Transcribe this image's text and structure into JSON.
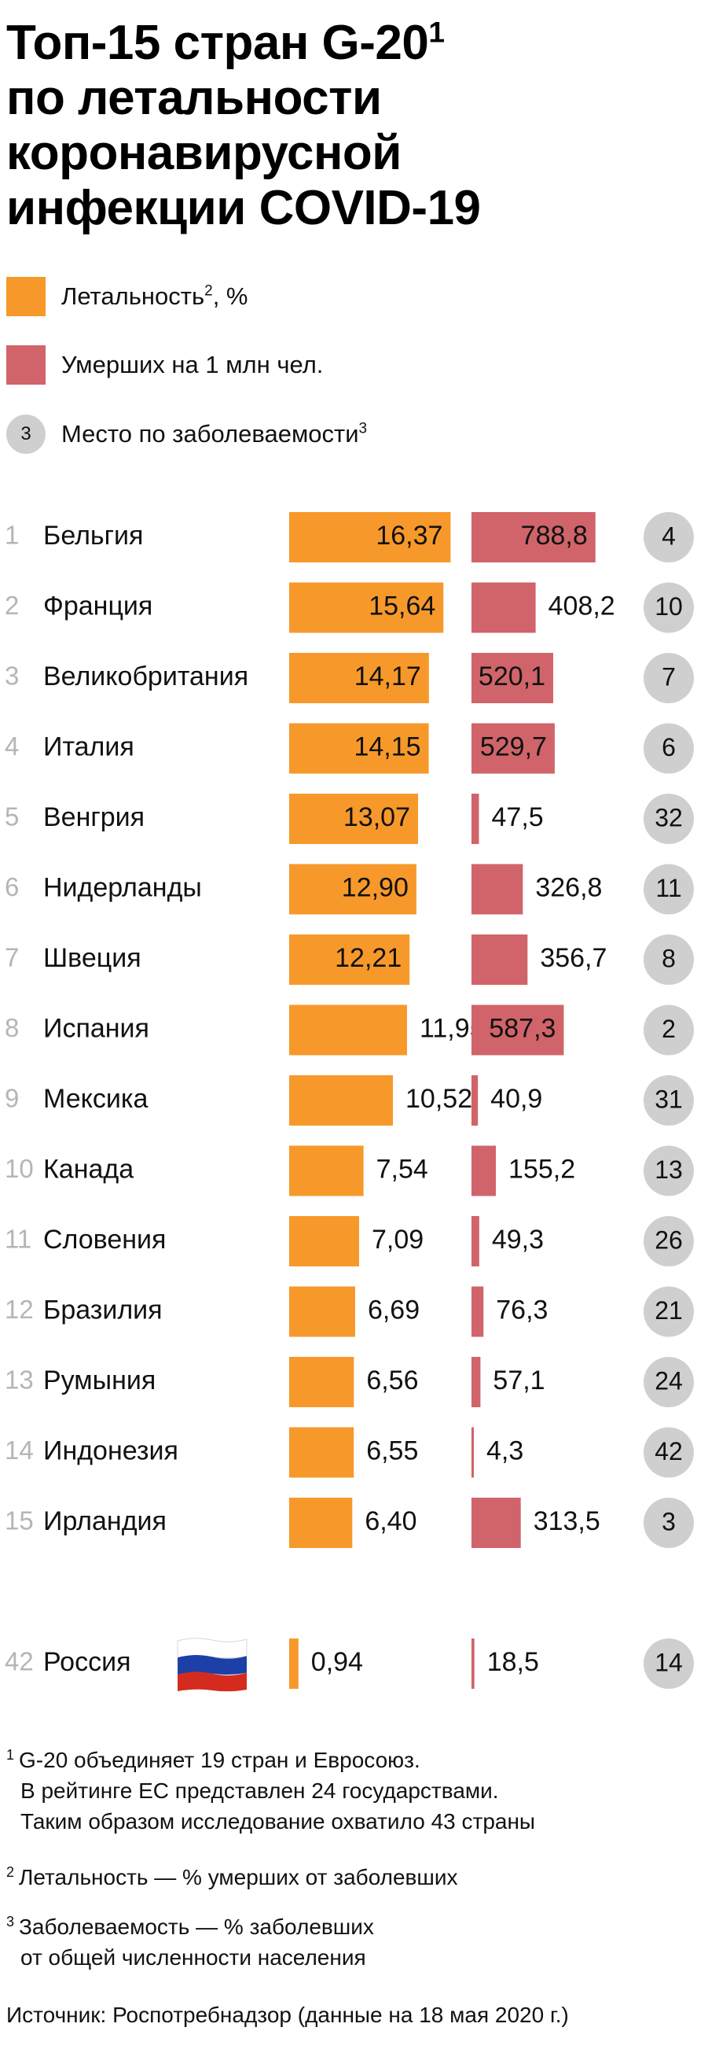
{
  "title_lines": [
    "Топ-15 стран G-20",
    "по летальности",
    "коронавирусной",
    "инфекции COVID-19"
  ],
  "title_sup": "1",
  "legend": [
    {
      "label": "Летальность",
      "sup": "2",
      "suffix": ", %",
      "color": "#f7992a"
    },
    {
      "label": "Умерших на 1 млн чел.",
      "sup": "",
      "suffix": "",
      "color": "#d0646a"
    },
    {
      "label": "Место по заболеваемости",
      "sup": "3",
      "suffix": "",
      "marker": "3",
      "color": "#cfcfcf"
    }
  ],
  "chart_data": {
    "type": "bar",
    "colors": {
      "lethality": "#f7992a",
      "deaths": "#d0646a",
      "place": "#cfcfcf",
      "rank": "#b5b5b5"
    },
    "rows": [
      {
        "rank": "1",
        "country": "Бельгия",
        "lethality": "16,37",
        "lethality_value": 16.37,
        "deaths": "788,8",
        "deaths_value": 788.8,
        "place": "4"
      },
      {
        "rank": "2",
        "country": "Франция",
        "lethality": "15,64",
        "lethality_value": 15.64,
        "deaths": "408,2",
        "deaths_value": 408.2,
        "place": "10"
      },
      {
        "rank": "3",
        "country": "Великобритания",
        "lethality": "14,17",
        "lethality_value": 14.17,
        "deaths": "520,1",
        "deaths_value": 520.1,
        "place": "7"
      },
      {
        "rank": "4",
        "country": "Италия",
        "lethality": "14,15",
        "lethality_value": 14.15,
        "deaths": "529,7",
        "deaths_value": 529.7,
        "place": "6"
      },
      {
        "rank": "5",
        "country": "Венгрия",
        "lethality": "13,07",
        "lethality_value": 13.07,
        "deaths": "47,5",
        "deaths_value": 47.5,
        "place": "32"
      },
      {
        "rank": "6",
        "country": "Нидерланды",
        "lethality": "12,90",
        "lethality_value": 12.9,
        "deaths": "326,8",
        "deaths_value": 326.8,
        "place": "11"
      },
      {
        "rank": "7",
        "country": "Швеция",
        "lethality": "12,21",
        "lethality_value": 12.21,
        "deaths": "356,7",
        "deaths_value": 356.7,
        "place": "8"
      },
      {
        "rank": "8",
        "country": "Испания",
        "lethality": "11,95",
        "lethality_value": 11.95,
        "deaths": "587,3",
        "deaths_value": 587.3,
        "place": "2"
      },
      {
        "rank": "9",
        "country": "Мексика",
        "lethality": "10,52",
        "lethality_value": 10.52,
        "deaths": "40,9",
        "deaths_value": 40.9,
        "place": "31"
      },
      {
        "rank": "10",
        "country": "Канада",
        "lethality": "7,54",
        "lethality_value": 7.54,
        "deaths": "155,2",
        "deaths_value": 155.2,
        "place": "13"
      },
      {
        "rank": "11",
        "country": "Словения",
        "lethality": "7,09",
        "lethality_value": 7.09,
        "deaths": "49,3",
        "deaths_value": 49.3,
        "place": "26"
      },
      {
        "rank": "12",
        "country": "Бразилия",
        "lethality": "6,69",
        "lethality_value": 6.69,
        "deaths": "76,3",
        "deaths_value": 76.3,
        "place": "21"
      },
      {
        "rank": "13",
        "country": "Румыния",
        "lethality": "6,56",
        "lethality_value": 6.56,
        "deaths": "57,1",
        "deaths_value": 57.1,
        "place": "24"
      },
      {
        "rank": "14",
        "country": "Индонезия",
        "lethality": "6,55",
        "lethality_value": 6.55,
        "deaths": "4,3",
        "deaths_value": 4.3,
        "place": "42"
      },
      {
        "rank": "15",
        "country": "Ирландия",
        "lethality": "6,40",
        "lethality_value": 6.4,
        "deaths": "313,5",
        "deaths_value": 313.5,
        "place": "3"
      }
    ],
    "highlight": {
      "rank": "42",
      "country": "Россия",
      "lethality": "0,94",
      "lethality_value": 0.94,
      "deaths": "18,5",
      "deaths_value": 18.5,
      "place": "14",
      "flag": [
        "#ffffff",
        "#1c3fa8",
        "#d52b1e"
      ]
    }
  },
  "footnotes": {
    "n1_marker": "1",
    "n1_lines": [
      "G-20 объединяет 19 стран и Евросоюз.",
      "В рейтинге ЕС представлен 24 государствами.",
      "Таким образом исследование охватило 43 страны"
    ],
    "n2_marker": "2",
    "n2_lines": [
      "Летальность — % умерших от заболевших"
    ],
    "n3_marker": "3",
    "n3_lines": [
      "Заболеваемость — % заболевших",
      "от общей численности населения"
    ],
    "source": "Источник: Роспотребнадзор (данные на 18 мая 2020 г.)"
  }
}
